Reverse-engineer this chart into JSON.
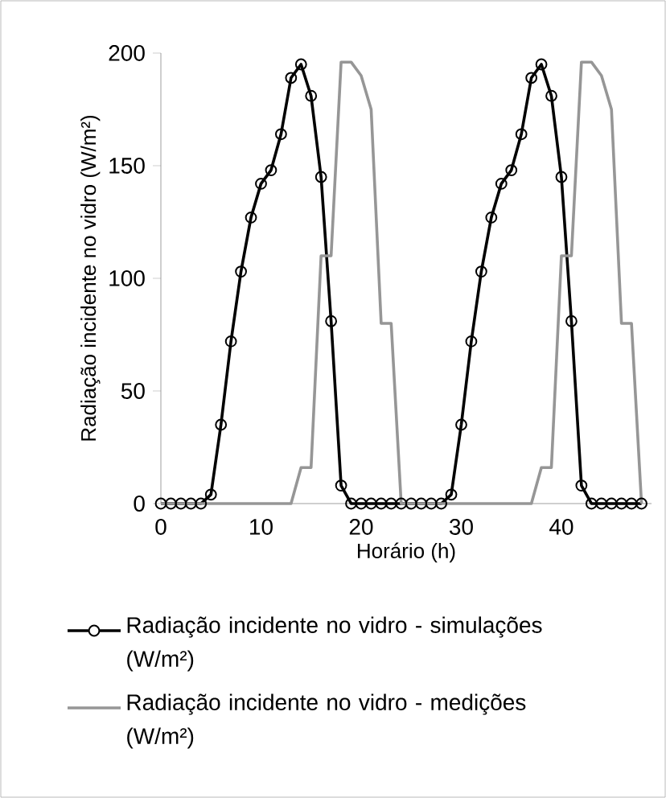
{
  "chart_data": {
    "type": "line",
    "xlabel": "Horário (h)",
    "ylabel": "Radiação incidente no vidro (W/m²)",
    "x": [
      0,
      1,
      2,
      3,
      4,
      5,
      6,
      7,
      8,
      9,
      10,
      11,
      12,
      13,
      14,
      15,
      16,
      17,
      18,
      19,
      20,
      21,
      22,
      23,
      24,
      25,
      26,
      27,
      28,
      29,
      30,
      31,
      32,
      33,
      34,
      35,
      36,
      37,
      38,
      39,
      40,
      41,
      42,
      43,
      44,
      45,
      46,
      47,
      48
    ],
    "series": [
      {
        "name": "Radiação incidente no vidro - simulações (W/m²)",
        "color": "#000000",
        "marker": "circle",
        "values": [
          0,
          0,
          0,
          0,
          0,
          4,
          35,
          72,
          103,
          127,
          142,
          148,
          164,
          189,
          195,
          181,
          145,
          81,
          8,
          0,
          0,
          0,
          0,
          0,
          0,
          0,
          0,
          0,
          0,
          4,
          35,
          72,
          103,
          127,
          142,
          148,
          164,
          189,
          195,
          181,
          145,
          81,
          8,
          0,
          0,
          0,
          0,
          0,
          0
        ]
      },
      {
        "name": "Radiação incidente no vidro - medições (W/m²)",
        "color": "#969696",
        "marker": "none",
        "values": [
          0,
          0,
          0,
          0,
          0,
          0,
          0,
          0,
          0,
          0,
          0,
          0,
          0,
          0,
          16,
          16,
          110,
          110,
          196,
          196,
          190,
          175,
          80,
          80,
          0,
          0,
          0,
          0,
          0,
          0,
          0,
          0,
          0,
          0,
          0,
          0,
          0,
          0,
          16,
          16,
          110,
          110,
          196,
          196,
          190,
          175,
          80,
          80,
          0
        ]
      }
    ],
    "xlim": [
      0,
      49
    ],
    "xticks": [
      0,
      10,
      20,
      30,
      40
    ],
    "ylim": [
      0,
      200
    ],
    "yticks": [
      0,
      50,
      100,
      150,
      200
    ],
    "legend": "bottom",
    "line_style": "solid"
  }
}
